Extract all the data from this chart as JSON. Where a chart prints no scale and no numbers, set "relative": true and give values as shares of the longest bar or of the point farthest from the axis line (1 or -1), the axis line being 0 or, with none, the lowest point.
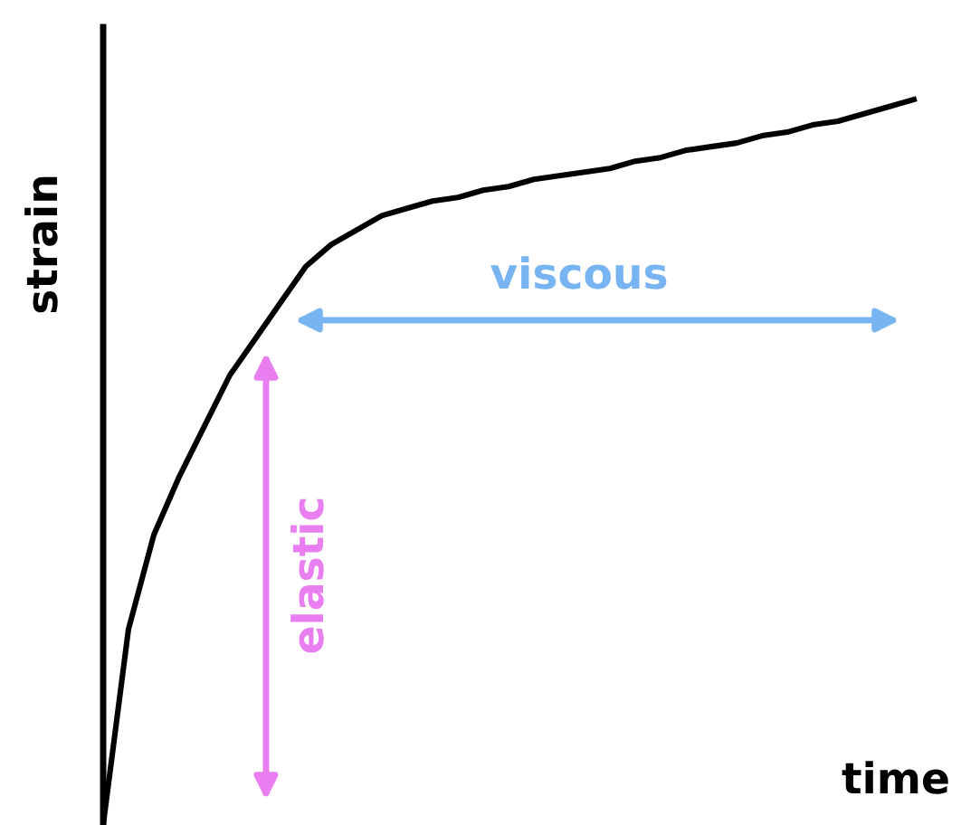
{
  "chart_data": {
    "type": "line",
    "relative": true,
    "xlabel": "time",
    "ylabel": "strain",
    "legend": false,
    "marker": "none",
    "line_style": "solid",
    "categories": [
      null,
      null,
      null,
      null,
      null,
      null,
      null,
      null,
      null,
      null,
      null,
      null,
      null,
      null,
      null,
      null,
      null,
      null,
      null,
      null,
      null,
      null,
      null,
      null,
      null,
      null,
      null,
      null,
      null,
      null,
      null,
      null,
      null
    ],
    "series": [
      {
        "color": "#000000",
        "values": [
          0,
          0.27,
          0.4,
          0.48,
          0.55,
          0.62,
          0.67,
          0.72,
          0.77,
          0.8,
          0.82,
          0.84,
          0.85,
          0.86,
          0.865,
          0.875,
          0.88,
          0.89,
          0.895,
          0.9,
          0.905,
          0.915,
          0.92,
          0.93,
          0.935,
          0.94,
          0.95,
          0.955,
          0.965,
          0.97,
          0.98,
          0.99,
          1.0
        ]
      }
    ],
    "annotations": [
      "elastic",
      "viscous"
    ]
  }
}
